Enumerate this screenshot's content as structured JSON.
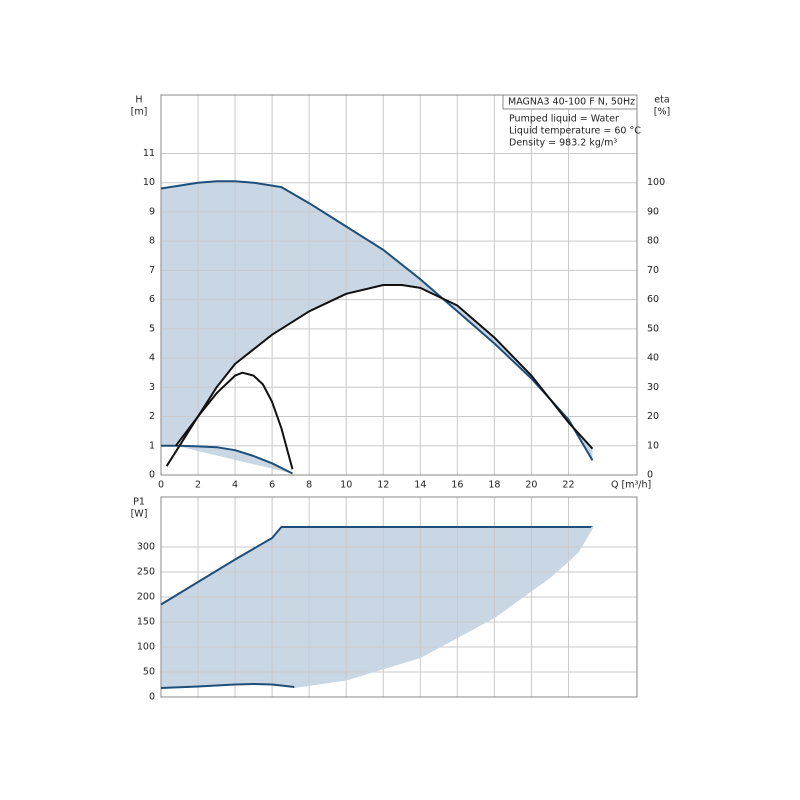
{
  "chart_data": [
    {
      "type": "line",
      "title": "MAGNA3 40-100 F N, 50Hz",
      "annotations": [
        "Pumped liquid = Water",
        "Liquid temperature = 60 °C",
        "Density = 983.2 kg/m³"
      ],
      "xlabel": "Q [m³/h]",
      "ylabel": [
        "H",
        "[m]"
      ],
      "y2label": [
        "eta",
        "[%]"
      ],
      "xlim": [
        0,
        25.7
      ],
      "xticks": [
        0,
        2,
        4,
        6,
        8,
        10,
        12,
        14,
        16,
        18,
        20,
        22
      ],
      "ylim": [
        0,
        13
      ],
      "yticks": [
        0,
        1,
        2,
        3,
        4,
        5,
        6,
        7,
        8,
        9,
        10,
        11
      ],
      "y2lim": [
        0,
        130
      ],
      "y2ticks": [
        0,
        10,
        20,
        30,
        40,
        50,
        60,
        70,
        80,
        90,
        100
      ],
      "grid": true,
      "area_color": "#c9d6e4",
      "series": [
        {
          "color": "#1f4e79",
          "x": [
            0,
            1,
            2,
            3,
            4,
            5,
            6,
            6.5,
            8,
            10,
            12,
            14,
            16,
            18,
            20,
            22,
            23.3
          ],
          "values": [
            9.8,
            9.9,
            10.0,
            10.05,
            10.05,
            10.0,
            9.9,
            9.85,
            9.3,
            8.5,
            7.7,
            6.7,
            5.6,
            4.5,
            3.3,
            1.9,
            0.5
          ]
        },
        {
          "color": "#1f4e79",
          "x": [
            0,
            1,
            2,
            3,
            4,
            5,
            6,
            7.1
          ],
          "values": [
            1.0,
            1.0,
            0.98,
            0.95,
            0.85,
            0.65,
            0.4,
            0.05
          ]
        },
        {
          "color": "#111111",
          "axis": "y2",
          "x": [
            0.8,
            2,
            3,
            4,
            6,
            8,
            10,
            12,
            13,
            14,
            16,
            18,
            20,
            22,
            23.3
          ],
          "values": [
            10,
            20,
            30,
            38,
            48,
            56,
            62,
            65,
            65,
            64,
            58,
            47,
            34,
            18,
            9
          ]
        },
        {
          "color": "#111111",
          "axis": "y2",
          "x": [
            0.3,
            1,
            2,
            3,
            4,
            4.4,
            5,
            5.5,
            6,
            6.5,
            7.1
          ],
          "values": [
            3,
            10,
            20,
            28,
            34,
            35,
            34,
            31,
            25,
            16,
            2
          ]
        }
      ]
    },
    {
      "type": "line",
      "ylabel": [
        "P1",
        "[W]"
      ],
      "xlim": [
        0,
        25.7
      ],
      "ylim": [
        0,
        400
      ],
      "yticks": [
        0,
        50,
        100,
        150,
        200,
        250,
        300
      ],
      "grid": true,
      "area_color": "#c9d6e4",
      "series": [
        {
          "color": "#1f4e79",
          "x": [
            0,
            2,
            4,
            6,
            6.5,
            7,
            23.3
          ],
          "values": [
            185,
            230,
            275,
            318,
            340,
            340,
            340
          ]
        },
        {
          "color": "#1f4e79",
          "x": [
            0,
            2,
            4,
            5,
            6,
            7.2
          ],
          "values": [
            18,
            21,
            25,
            26,
            25,
            20
          ]
        },
        {
          "color": "#c9d6e4",
          "x": [
            7.2,
            10,
            14,
            18,
            21,
            22.5,
            23.3
          ],
          "values": [
            20,
            35,
            80,
            160,
            240,
            290,
            340
          ]
        }
      ]
    }
  ]
}
